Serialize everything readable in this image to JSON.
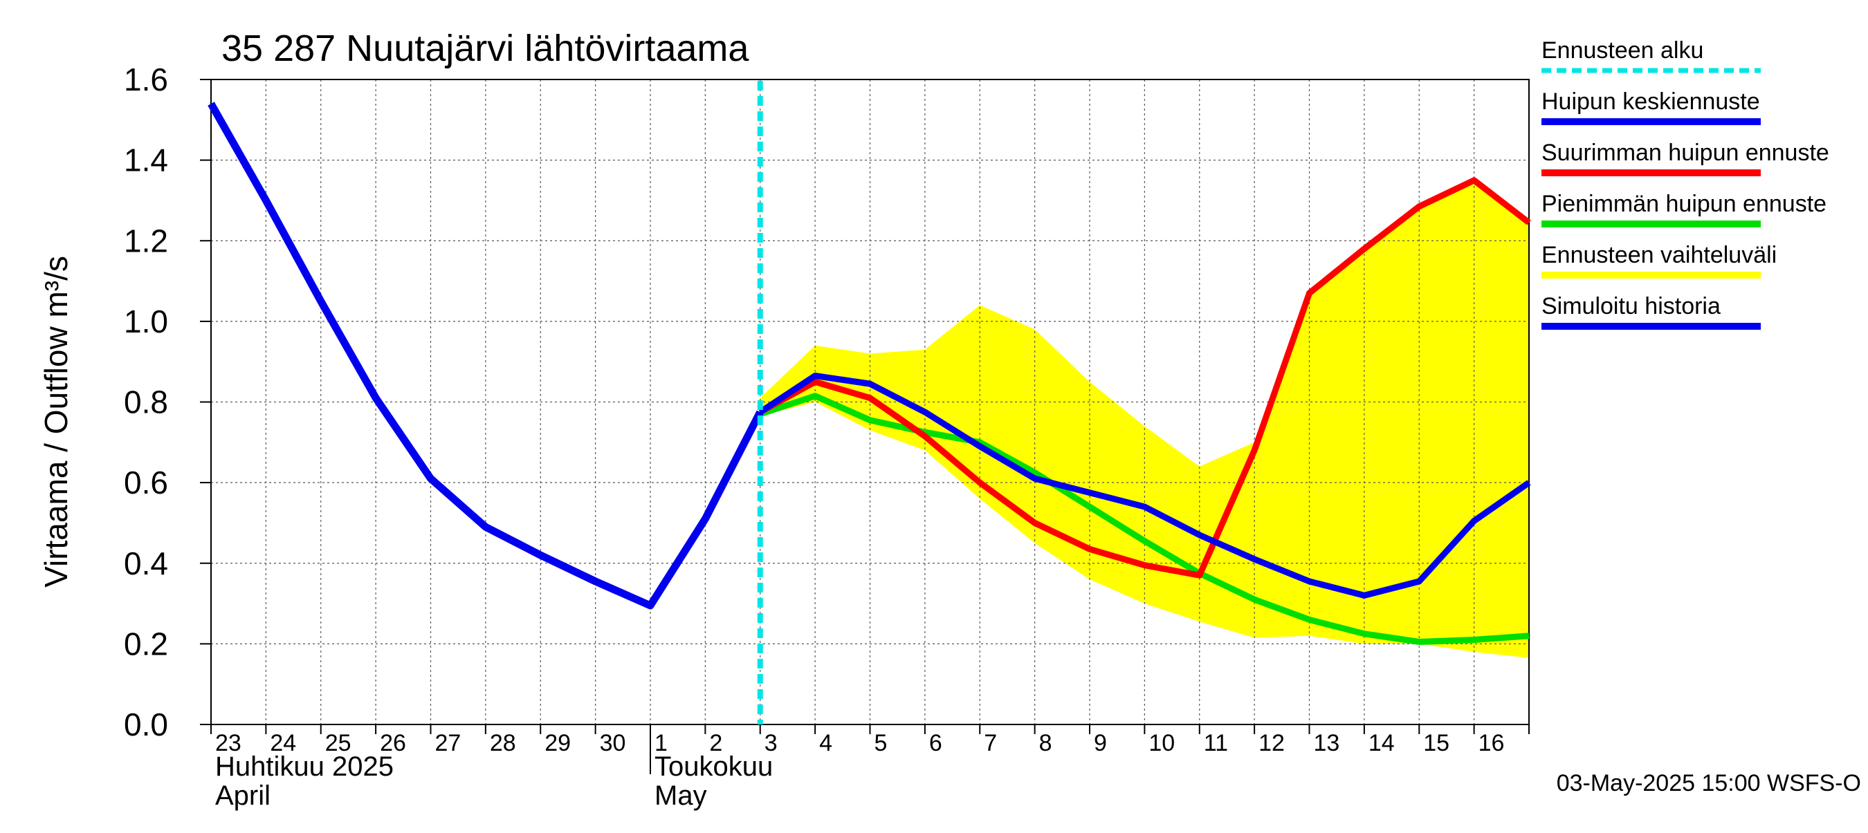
{
  "chart_data": {
    "type": "line",
    "title": "35 287 Nuutajärvi lähtövirtaama",
    "ylabel": "Virtaama / Outflow    m³/s",
    "ylim": [
      0,
      1.6
    ],
    "yticks": [
      0.0,
      0.2,
      0.4,
      0.6,
      0.8,
      1.0,
      1.2,
      1.4,
      1.6
    ],
    "ytick_labels": [
      "0.0",
      "0.2",
      "0.4",
      "0.6",
      "0.8",
      "1.0",
      "1.2",
      "1.4",
      "1.6"
    ],
    "x_days": [
      "23",
      "24",
      "25",
      "26",
      "27",
      "28",
      "29",
      "30",
      "1",
      "2",
      "3",
      "4",
      "5",
      "6",
      "7",
      "8",
      "9",
      "10",
      "11",
      "12",
      "13",
      "14",
      "15",
      "16"
    ],
    "month_labels": [
      {
        "line1": "Huhtikuu  2025",
        "line2": "April",
        "start_day_index": 0
      },
      {
        "line1": "Toukokuu",
        "line2": "May",
        "start_day_index": 8
      }
    ],
    "grid": true,
    "forecast_start": 10.0,
    "timestamp": "03-May-2025 15:00 WSFS-O",
    "colors": {
      "forecast_start": "#00e5e5",
      "mean_peak": "#0000ee",
      "max_peak": "#ff0000",
      "min_peak": "#00dd00",
      "range": "#ffff00",
      "history": "#0000ee"
    },
    "legend": {
      "placement": "right",
      "entries": [
        {
          "label": "Ennusteen alku",
          "key": "forecast_start",
          "style": "dashed"
        },
        {
          "label": "Huipun keskiennuste",
          "key": "mean_peak",
          "style": "solid"
        },
        {
          "label": "Suurimman huipun ennuste",
          "key": "max_peak",
          "style": "solid"
        },
        {
          "label": "Pienimmän huipun ennuste",
          "key": "min_peak",
          "style": "solid"
        },
        {
          "label": "Ennusteen vaihteluväli",
          "key": "range",
          "style": "solid"
        },
        {
          "label": "Simuloitu historia",
          "key": "history",
          "style": "solid"
        }
      ]
    },
    "series": [
      {
        "name": "Simuloitu historia",
        "key": "history",
        "x": [
          0,
          1,
          2,
          3,
          4,
          5,
          6,
          7,
          8,
          9,
          10
        ],
        "y": [
          1.54,
          1.3,
          1.05,
          0.81,
          0.61,
          0.49,
          0.42,
          0.355,
          0.295,
          0.51,
          0.775
        ]
      },
      {
        "name": "Huipun keskiennuste",
        "key": "mean_peak",
        "x": [
          10,
          11,
          12,
          13,
          14,
          15,
          16,
          17,
          18,
          19,
          20,
          21,
          22,
          23,
          24
        ],
        "y": [
          0.775,
          0.865,
          0.845,
          0.775,
          0.69,
          0.61,
          0.575,
          0.54,
          0.47,
          0.41,
          0.355,
          0.32,
          0.355,
          0.505,
          0.6
        ]
      },
      {
        "name": "Suurimman huipun ennuste",
        "key": "max_peak",
        "x": [
          10,
          11,
          12,
          13,
          14,
          15,
          16,
          17,
          18,
          19,
          20,
          21,
          22,
          23,
          24
        ],
        "y": [
          0.775,
          0.85,
          0.81,
          0.715,
          0.6,
          0.5,
          0.435,
          0.395,
          0.37,
          0.68,
          1.07,
          1.18,
          1.285,
          1.35,
          1.245
        ]
      },
      {
        "name": "Pienimmän huipun ennuste",
        "key": "min_peak",
        "x": [
          10,
          11,
          12,
          13,
          14,
          15,
          16,
          17,
          18,
          19,
          20,
          21,
          22,
          23,
          24
        ],
        "y": [
          0.77,
          0.815,
          0.755,
          0.725,
          0.7,
          0.625,
          0.54,
          0.455,
          0.375,
          0.31,
          0.26,
          0.225,
          0.205,
          0.21,
          0.22
        ]
      }
    ],
    "range_band": {
      "x": [
        10,
        11,
        12,
        13,
        14,
        15,
        16,
        17,
        18,
        19,
        20,
        21,
        22,
        23,
        24
      ],
      "upper": [
        0.81,
        0.94,
        0.92,
        0.93,
        1.04,
        0.98,
        0.85,
        0.74,
        0.64,
        0.7,
        1.07,
        1.18,
        1.285,
        1.35,
        1.245
      ],
      "lower": [
        0.765,
        0.8,
        0.73,
        0.68,
        0.56,
        0.45,
        0.36,
        0.3,
        0.255,
        0.215,
        0.22,
        0.2,
        0.2,
        0.18,
        0.165
      ]
    }
  }
}
